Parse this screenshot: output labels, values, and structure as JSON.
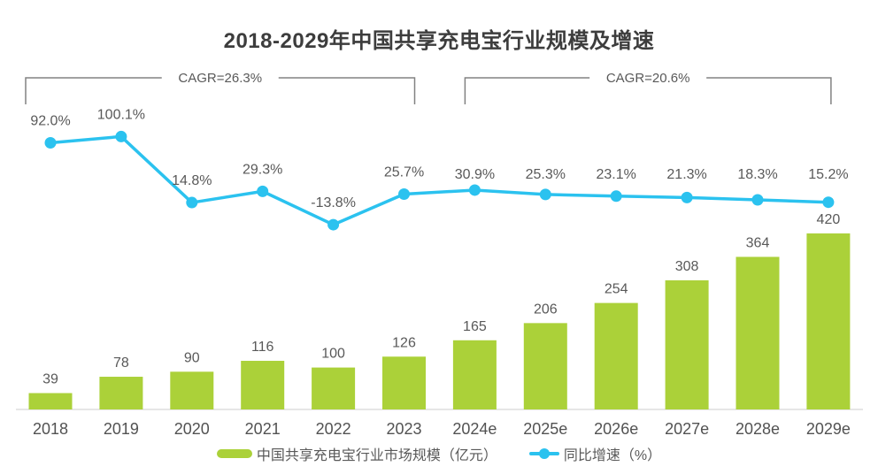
{
  "title": "2018-2029年中国共享充电宝行业规模及增速",
  "colors": {
    "bar_green": "#abd139",
    "line_cyan": "#2bc2ef",
    "title_text": "#3d3d3d",
    "label_gray": "#595959",
    "axis_gray": "#d6d6d6",
    "bracket_gray": "#828282",
    "background": "#ffffff"
  },
  "chart_data": {
    "type": "combo",
    "title": "2018-2029年中国共享充电宝行业规模及增速",
    "categories": [
      "2018",
      "2019",
      "2020",
      "2021",
      "2022",
      "2023",
      "2024e",
      "2025e",
      "2026e",
      "2027e",
      "2028e",
      "2029e"
    ],
    "series": [
      {
        "name": "中国共享充电宝行业市场规模（亿元）",
        "type": "bar",
        "color": "#abd139",
        "values": [
          39,
          78,
          90,
          116,
          100,
          126,
          165,
          206,
          254,
          308,
          364,
          420
        ],
        "value_labels": [
          "39",
          "78",
          "90",
          "116",
          "100",
          "126",
          "165",
          "206",
          "254",
          "308",
          "364",
          "420"
        ]
      },
      {
        "name": "同比增速（%）",
        "type": "line",
        "color": "#2bc2ef",
        "values": [
          92.0,
          100.1,
          14.8,
          29.3,
          -13.8,
          25.7,
          30.9,
          25.3,
          23.1,
          21.3,
          18.3,
          15.2
        ],
        "value_labels": [
          "92.0%",
          "100.1%",
          "14.8%",
          "29.3%",
          "-13.8%",
          "25.7%",
          "30.9%",
          "25.3%",
          "23.1%",
          "21.3%",
          "18.3%",
          "15.2%"
        ]
      }
    ],
    "annotations": [
      {
        "label": "CAGR=26.3%",
        "span": [
          "2018",
          "2023"
        ]
      },
      {
        "label": "CAGR=20.6%",
        "span": [
          "2024e",
          "2029e"
        ]
      }
    ],
    "layout_hints": {
      "grid": false,
      "y_axis_shown": false,
      "x_axis_line_shown": true,
      "data_labels_shown": true,
      "legend_position": "bottom"
    }
  }
}
